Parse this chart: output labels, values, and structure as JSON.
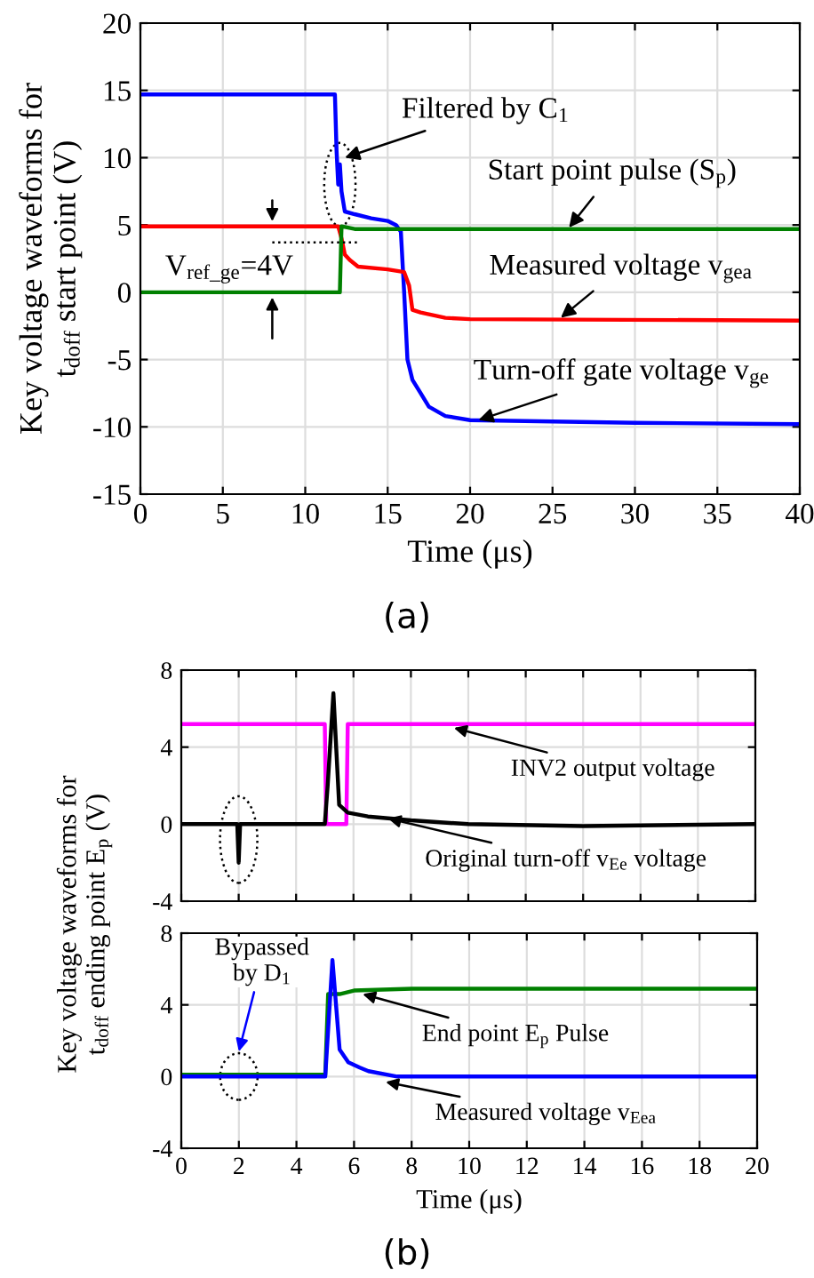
{
  "chart_data": [
    {
      "type": "line",
      "xlabel": "Time (μs)",
      "ylabel": "Key voltage waveforms for\nt$_{doff}$ start point (V)",
      "xlim": [
        0,
        40
      ],
      "ylim": [
        -15,
        20
      ],
      "xticks": [
        0,
        5,
        10,
        15,
        20,
        25,
        30,
        35,
        40
      ],
      "yticks": [
        -15,
        -10,
        -5,
        0,
        5,
        10,
        15,
        20
      ],
      "grid": true,
      "series": [
        {
          "color": "#0000ff",
          "x": [
            0,
            11.8,
            11.9,
            12.0,
            12.1,
            12.2,
            12.4,
            13,
            14,
            15,
            15.5,
            15.8,
            16.0,
            16.2,
            16.5,
            17,
            17.5,
            18.5,
            20,
            25,
            30,
            40
          ],
          "values": [
            14.7,
            14.7,
            10.5,
            8,
            9.5,
            7.5,
            6,
            5.8,
            5.5,
            5.3,
            5.0,
            4.5,
            0,
            -5,
            -6.5,
            -7.5,
            -8.5,
            -9.2,
            -9.5,
            -9.6,
            -9.7,
            -9.8
          ]
        },
        {
          "color": "#ff0000",
          "x": [
            0,
            12.0,
            12.2,
            12.4,
            12.7,
            13.2,
            15,
            16,
            16.3,
            16.5,
            17,
            18.5,
            20,
            40
          ],
          "values": [
            4.9,
            4.9,
            4.0,
            2.8,
            2.4,
            1.9,
            1.7,
            1.5,
            0.5,
            -1.3,
            -1.5,
            -1.9,
            -2.0,
            -2.1
          ]
        },
        {
          "color": "#008000",
          "x": [
            0,
            12.1,
            12.2,
            13,
            40
          ],
          "values": [
            0,
            0,
            4.9,
            4.7,
            4.7
          ]
        }
      ],
      "annotations": [
        {
          "text": "Filtered by C$_{1}$",
          "x": 12.4,
          "y": 10
        },
        {
          "text": "Start point pulse (S$_{p}$)",
          "x": 26,
          "y": 4.8
        },
        {
          "text": "Measured voltage v$_{gea}$",
          "x": 25.5,
          "y": -1.9
        },
        {
          "text": "Turn-off gate voltage v$_{ge}$",
          "x": 20.5,
          "y": -9.5
        },
        "V$_{ref_ge}$=4V",
        "(a)"
      ]
    },
    {
      "type": "line",
      "ylabel": "Key voltage waveforms for\nt$_{doff}$ ending point E$_{p}$ (V)",
      "xlim": [
        0,
        20
      ],
      "ylim": [
        -4,
        8
      ],
      "xticks": [
        0,
        2,
        4,
        6,
        8,
        10,
        12,
        14,
        16,
        18,
        20
      ],
      "yticks": [
        -4,
        0,
        4,
        8
      ],
      "tick_labels": "y",
      "grid": true,
      "series": [
        {
          "color": "#ff00ff",
          "x": [
            0,
            5.0,
            5.05,
            5.75,
            5.8,
            20
          ],
          "values": [
            5.2,
            5.2,
            0,
            0,
            5.2,
            5.2
          ]
        },
        {
          "color": "#000000",
          "x": [
            0,
            1.95,
            2.0,
            2.05,
            5.0,
            5.1,
            5.3,
            5.5,
            5.8,
            6.5,
            8,
            10,
            14,
            20
          ],
          "values": [
            0,
            0,
            -2,
            0,
            0,
            2,
            6.8,
            1,
            0.6,
            0.4,
            0.2,
            0,
            -0.1,
            0
          ]
        }
      ],
      "annotations": [
        {
          "text": "INV2 output voltage",
          "x": 9.5,
          "y": 5.0
        },
        {
          "text": "Original turn-off v$_{Ee}$ voltage",
          "x": 7.2,
          "y": 0.3
        }
      ]
    },
    {
      "type": "line",
      "xlabel": "Time (μs)",
      "xlim": [
        0,
        20
      ],
      "ylim": [
        -4,
        8
      ],
      "xticks": [
        0,
        2,
        4,
        6,
        8,
        10,
        12,
        14,
        16,
        18,
        20
      ],
      "yticks": [
        -4,
        0,
        4,
        8
      ],
      "grid": true,
      "series": [
        {
          "color": "#008000",
          "x": [
            0,
            5.0,
            5.1,
            5.5,
            6,
            8,
            20
          ],
          "values": [
            0.1,
            0.1,
            4.6,
            4.6,
            4.8,
            4.9,
            4.9
          ]
        },
        {
          "color": "#0000ff",
          "x": [
            0,
            5.0,
            5.25,
            5.5,
            5.8,
            6.2,
            6.5,
            7.5,
            20
          ],
          "values": [
            0,
            0,
            6.5,
            1.5,
            0.8,
            0.5,
            0.3,
            0,
            0
          ]
        }
      ],
      "annotations": [
        "Bypassed\nby D$_{1}$",
        {
          "text": "End point E$_{p}$ Pulse",
          "x": 6.3,
          "y": 4.6
        },
        {
          "text": "Measured voltage v$_{Eea}$",
          "x": 7.1,
          "y": -0.3
        },
        "(b)"
      ]
    }
  ]
}
